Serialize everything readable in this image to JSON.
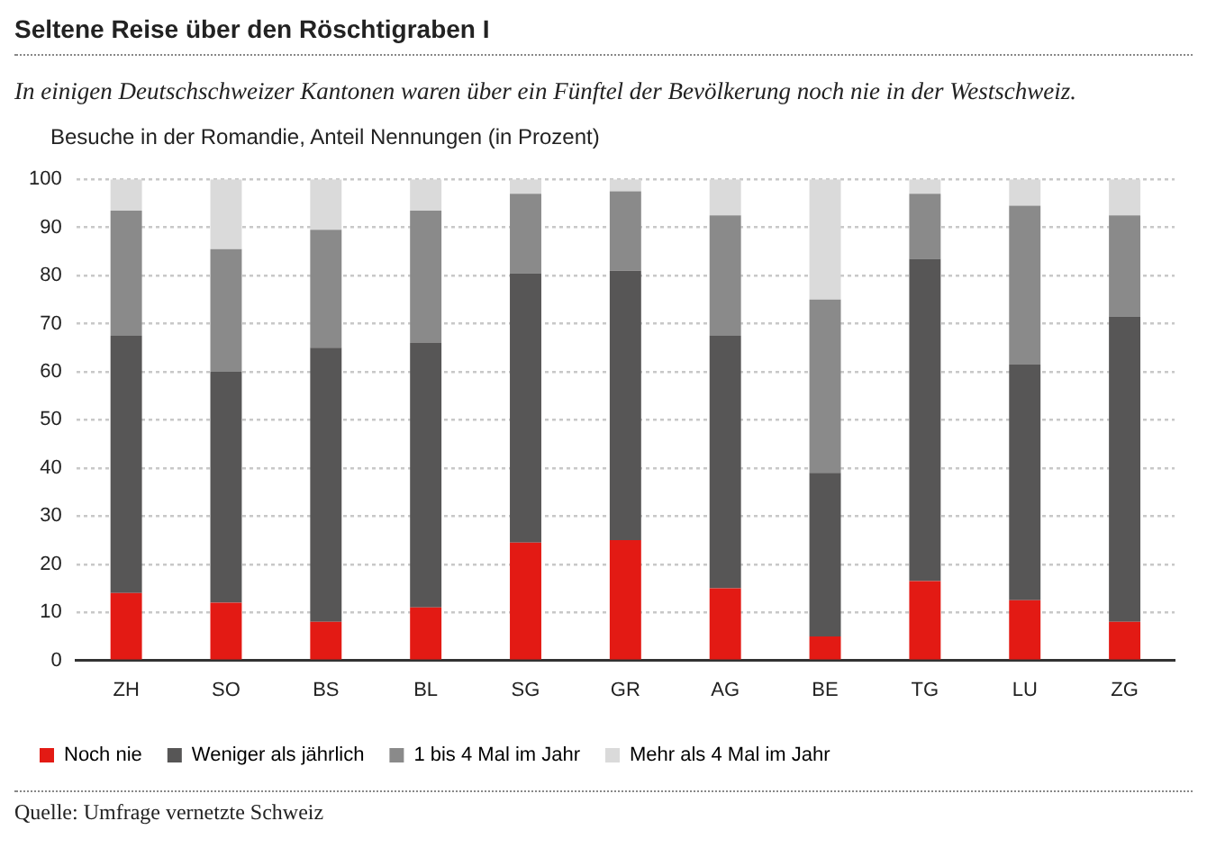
{
  "chart_data": {
    "type": "bar",
    "title": "Seltene Reise über den Röschtigraben I",
    "subtitle": "In einigen Deutschschweizer Kantonen waren über ein Fünftel der Bevölkerung noch nie in der Westschweiz.",
    "ylabel": "Besuche in der Romandie, Anteil Nennungen (in Prozent)",
    "categories": [
      "ZH",
      "SO",
      "BS",
      "BL",
      "SG",
      "GR",
      "AG",
      "BE",
      "TG",
      "LU",
      "ZG"
    ],
    "series": [
      {
        "name": "Noch nie",
        "color": "#e31a14",
        "values": [
          14,
          12,
          8,
          11,
          24.5,
          25,
          15,
          5,
          16.5,
          12.5,
          8
        ]
      },
      {
        "name": "Weniger als jährlich",
        "color": "#575656",
        "values": [
          53.5,
          48,
          57,
          55,
          56,
          56,
          52.5,
          34,
          67,
          49,
          63.5
        ]
      },
      {
        "name": "1 bis 4 Mal im Jahr",
        "color": "#8a8a8a",
        "values": [
          26,
          25.5,
          24.5,
          27.5,
          16.5,
          16.5,
          25,
          36,
          13.5,
          33,
          21
        ]
      },
      {
        "name": "Mehr als 4 Mal im Jahr",
        "color": "#dadada",
        "values": [
          6.5,
          14.5,
          10.5,
          6.5,
          3,
          2.5,
          7.5,
          25,
          3,
          5.5,
          7.5
        ]
      }
    ],
    "stacked": true,
    "ylim": [
      0,
      100
    ],
    "yticks": [
      0,
      10,
      20,
      30,
      40,
      50,
      60,
      70,
      80,
      90,
      100
    ],
    "grid": "y",
    "legend": "bottom",
    "annotations": [
      "Quelle: Umfrage vernetzte Schweiz"
    ]
  }
}
